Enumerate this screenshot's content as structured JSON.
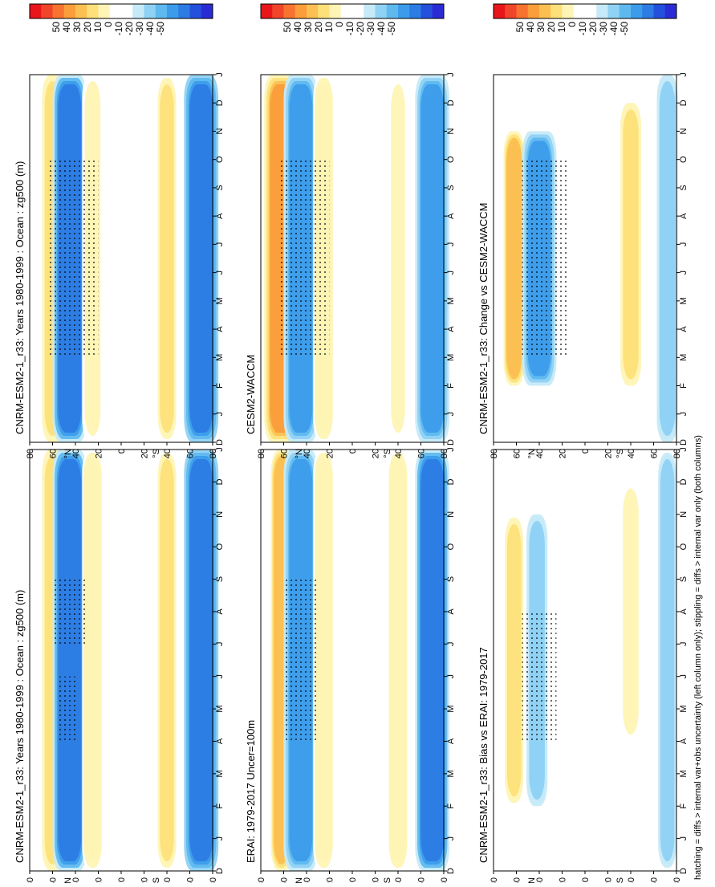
{
  "figure": {
    "orientation": "rotated 90 degrees clockwise",
    "footnote": "hatching = diffs > internal var+obs uncertainty (left column only); stippling = diffs > internal var only (both columns)"
  },
  "colorbar": {
    "labels": [
      "50",
      "40",
      "30",
      "20",
      "10",
      "0",
      "-10",
      "-20",
      "-30",
      "-40",
      "-50"
    ],
    "colors": [
      "#e8161b",
      "#f0452a",
      "#f7732f",
      "#fb9d3b",
      "#fcc052",
      "#fde07a",
      "#fef4b5",
      "#ffffff",
      "#ffffff",
      "#c6eaf8",
      "#8fd2f4",
      "#5fb9ef",
      "#3c9ceb",
      "#2c7ce4",
      "#2350dc",
      "#2b2bd6"
    ]
  },
  "chart_data": [
    {
      "type": "heatmap",
      "title": "CNRM-ESM2-1_r33: Years 1980-1999 : Ocean : zg500 (m)",
      "x_ticks": [
        "D",
        "J",
        "F",
        "M",
        "A",
        "M",
        "J",
        "J",
        "A",
        "S",
        "O",
        "N",
        "D",
        "J"
      ],
      "y_ticks": [
        "80",
        "60",
        "40",
        "20",
        "0",
        "20",
        "40",
        "60",
        "80"
      ],
      "y_label": "°N",
      "y_label_south": "°S",
      "zlim": [
        -55,
        55
      ],
      "bands": [
        {
          "lat": 60,
          "value": 20,
          "month_range": [
            0,
            13
          ],
          "note": "positive anomaly band near 60-70N"
        },
        {
          "lat": 45,
          "value": -35,
          "month_range": [
            0,
            13
          ],
          "note": "strong negative band 40-55N, minimum Apr-May"
        },
        {
          "lat": 25,
          "value": 12,
          "month_range": [
            0,
            13
          ],
          "note": "weak positive 20-30N"
        },
        {
          "lat": -40,
          "value": 15,
          "month_range": [
            0,
            13
          ],
          "note": "positive band ~40S, peak Apr and Oct"
        },
        {
          "lat": -70,
          "value": -40,
          "month_range": [
            0,
            13
          ],
          "note": "negative band near 70-80S"
        }
      ],
      "stippling": [
        {
          "months": [
            4,
            6
          ],
          "lat": [
            40,
            55
          ]
        },
        {
          "months": [
            7,
            9
          ],
          "lat": [
            30,
            60
          ]
        }
      ]
    },
    {
      "type": "heatmap",
      "title": "CNRM-ESM2-1_r33: Years 1980-1999 : Ocean : zg500 (m)",
      "x_ticks": [
        "D",
        "J",
        "F",
        "M",
        "A",
        "M",
        "J",
        "J",
        "A",
        "S",
        "O",
        "N",
        "D",
        "J"
      ],
      "y_ticks": [
        "80",
        "60",
        "40",
        "20",
        "0",
        "20",
        "40",
        "60",
        "80"
      ],
      "y_label": "°N",
      "y_label_south": "°S",
      "zlim": [
        -55,
        55
      ],
      "bands": [
        {
          "lat": 60,
          "value": 20,
          "month_range": [
            0,
            13
          ]
        },
        {
          "lat": 45,
          "value": -35,
          "month_range": [
            0,
            13
          ]
        },
        {
          "lat": 25,
          "value": 10,
          "month_range": [
            0,
            13
          ]
        },
        {
          "lat": -40,
          "value": 15,
          "month_range": [
            0,
            13
          ]
        },
        {
          "lat": -70,
          "value": -40,
          "month_range": [
            0,
            13
          ]
        }
      ],
      "stippling": [
        {
          "months": [
            3,
            10
          ],
          "lat": [
            20,
            65
          ]
        }
      ]
    },
    {
      "type": "heatmap",
      "title": "ERAI: 1979-2017 Uncer=100m",
      "x_ticks": [
        "D",
        "J",
        "F",
        "M",
        "A",
        "M",
        "J",
        "J",
        "A",
        "S",
        "O",
        "N",
        "D",
        "J"
      ],
      "y_ticks": [
        "80",
        "60",
        "40",
        "20",
        "0",
        "20",
        "40",
        "60",
        "80"
      ],
      "y_label": "°N",
      "y_label_south": "°S",
      "zlim": [
        -55,
        55
      ],
      "bands": [
        {
          "lat": 62,
          "value": 25,
          "month_range": [
            0,
            13
          ]
        },
        {
          "lat": 45,
          "value": -30,
          "month_range": [
            0,
            13
          ]
        },
        {
          "lat": 25,
          "value": 12,
          "month_range": [
            0,
            13
          ]
        },
        {
          "lat": -40,
          "value": 12,
          "month_range": [
            0,
            13
          ]
        },
        {
          "lat": -70,
          "value": -35,
          "month_range": [
            0,
            13
          ]
        }
      ],
      "stippling": [
        {
          "months": [
            4,
            9
          ],
          "lat": [
            30,
            60
          ]
        }
      ]
    },
    {
      "type": "heatmap",
      "title": "CESM2-WACCM",
      "x_ticks": [
        "D",
        "J",
        "F",
        "M",
        "A",
        "M",
        "J",
        "J",
        "A",
        "S",
        "O",
        "N",
        "D",
        "J"
      ],
      "y_ticks": [
        "80",
        "60",
        "40",
        "20",
        "0",
        "20",
        "40",
        "60",
        "80"
      ],
      "y_label": "°N",
      "y_label_south": "°S",
      "zlim": [
        -55,
        55
      ],
      "bands": [
        {
          "lat": 62,
          "value": 30,
          "month_range": [
            0,
            13
          ]
        },
        {
          "lat": 45,
          "value": -30,
          "month_range": [
            0,
            13
          ]
        },
        {
          "lat": 25,
          "value": 12,
          "month_range": [
            0,
            13
          ]
        },
        {
          "lat": -40,
          "value": 8,
          "month_range": [
            0,
            13
          ]
        },
        {
          "lat": -70,
          "value": -30,
          "month_range": [
            0,
            13
          ]
        }
      ],
      "stippling": [
        {
          "months": [
            3,
            10
          ],
          "lat": [
            20,
            65
          ]
        }
      ]
    },
    {
      "type": "heatmap",
      "title": "CNRM-ESM2-1_r33: Bias vs ERAI: 1979-2017",
      "x_ticks": [
        "D",
        "J",
        "F",
        "M",
        "A",
        "M",
        "J",
        "J",
        "A",
        "S",
        "O",
        "N",
        "D",
        "J"
      ],
      "y_ticks": [
        "80",
        "60",
        "40",
        "20",
        "0",
        "20",
        "40",
        "60",
        "80"
      ],
      "y_label": "°N",
      "y_label_south": "°S",
      "zlim": [
        -55,
        55
      ],
      "bands": [
        {
          "lat": 62,
          "value": 15,
          "month_range": [
            2,
            11
          ]
        },
        {
          "lat": 42,
          "value": -20,
          "month_range": [
            2,
            11
          ]
        },
        {
          "lat": -40,
          "value": 10,
          "month_range": [
            4,
            12
          ]
        },
        {
          "lat": -72,
          "value": -15,
          "month_range": [
            0,
            13
          ]
        }
      ],
      "stippling": [
        {
          "months": [
            4,
            8
          ],
          "lat": [
            25,
            55
          ]
        }
      ]
    },
    {
      "type": "heatmap",
      "title": "CNRM-ESM2-1_r33: Change vs CESM2-WACCM",
      "x_ticks": [
        "D",
        "J",
        "F",
        "M",
        "A",
        "M",
        "J",
        "J",
        "A",
        "S",
        "O",
        "N",
        "D",
        "J"
      ],
      "y_ticks": [
        "80",
        "60",
        "40",
        "20",
        "0",
        "20",
        "40",
        "60",
        "80"
      ],
      "y_label": "°N",
      "y_label_south": "°S",
      "zlim": [
        -55,
        55
      ],
      "bands": [
        {
          "lat": 62,
          "value": 25,
          "month_range": [
            2,
            11
          ]
        },
        {
          "lat": 40,
          "value": -30,
          "month_range": [
            2,
            11
          ]
        },
        {
          "lat": -40,
          "value": 20,
          "month_range": [
            2,
            12
          ]
        },
        {
          "lat": -72,
          "value": -20,
          "month_range": [
            0,
            13
          ]
        }
      ],
      "stippling": [
        {
          "months": [
            3,
            10
          ],
          "lat": [
            15,
            55
          ]
        }
      ]
    }
  ]
}
